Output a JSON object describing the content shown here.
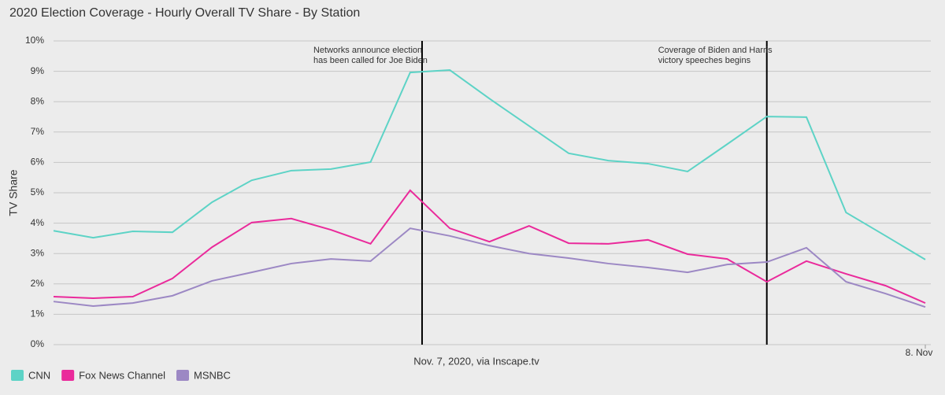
{
  "chart_data": {
    "type": "line",
    "title": "2020 Election Coverage - Hourly Overall TV Share - By Station",
    "xlabel": "Nov. 7, 2020, via Inscape.tv",
    "ylabel": "TV Share",
    "x": [
      2,
      3,
      4,
      5,
      6,
      7,
      8,
      9,
      10,
      11,
      12,
      13,
      14,
      15,
      16,
      17,
      18,
      19,
      20,
      21,
      22,
      23,
      24
    ],
    "xlim": [
      2,
      24
    ],
    "xticks": [
      {
        "value": 24,
        "label": "8. Nov"
      }
    ],
    "ylim": [
      0,
      10
    ],
    "yticks": [
      {
        "value": 0,
        "label": "0%"
      },
      {
        "value": 1,
        "label": "1%"
      },
      {
        "value": 2,
        "label": "2%"
      },
      {
        "value": 3,
        "label": "3%"
      },
      {
        "value": 4,
        "label": "4%"
      },
      {
        "value": 5,
        "label": "5%"
      },
      {
        "value": 6,
        "label": "6%"
      },
      {
        "value": 7,
        "label": "7%"
      },
      {
        "value": 8,
        "label": "8%"
      },
      {
        "value": 9,
        "label": "9%"
      },
      {
        "value": 10,
        "label": "10%"
      }
    ],
    "grid": true,
    "legend": "bottom-left",
    "series": [
      {
        "name": "CNN",
        "color": "#5dd3c6",
        "values": [
          3.75,
          3.52,
          3.73,
          3.7,
          4.69,
          5.41,
          5.73,
          5.78,
          6.01,
          8.96,
          9.04,
          8.1,
          7.2,
          6.3,
          6.06,
          5.96,
          5.7,
          6.6,
          7.51,
          7.49,
          4.35,
          3.58,
          2.8
        ]
      },
      {
        "name": "Fox News Channel",
        "color": "#ea2a9b",
        "values": [
          1.58,
          1.53,
          1.58,
          2.18,
          3.21,
          4.02,
          4.15,
          3.78,
          3.32,
          5.08,
          3.83,
          3.39,
          3.91,
          3.34,
          3.32,
          3.45,
          2.98,
          2.82,
          2.07,
          2.75,
          2.33,
          1.94,
          1.37
        ]
      },
      {
        "name": "MSNBC",
        "color": "#9c88c4",
        "values": [
          1.42,
          1.27,
          1.37,
          1.61,
          2.1,
          2.38,
          2.67,
          2.82,
          2.75,
          3.83,
          3.58,
          3.26,
          3.0,
          2.85,
          2.67,
          2.54,
          2.38,
          2.64,
          2.72,
          3.19,
          2.07,
          1.68,
          1.24
        ]
      }
    ],
    "annotations": [
      {
        "x": 11.3,
        "text": [
          "Networks announce election",
          "has been called for Joe Biden"
        ]
      },
      {
        "x": 20,
        "text": [
          "Coverage of Biden and Harris",
          "victory speeches begins"
        ]
      }
    ]
  }
}
